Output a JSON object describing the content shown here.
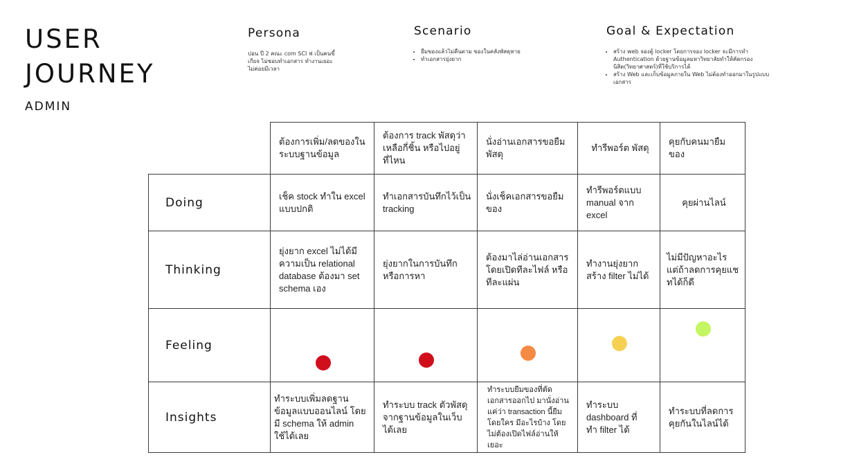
{
  "title": {
    "line1": "USER",
    "line2": "JOURNEY",
    "subtitle": "ADMIN"
  },
  "persona": {
    "heading": "Persona",
    "text": "ปอน ปี 2 คณะ com SCI ฟ เป็นคนขี้เกียจ ไม่ชอบทำเอกสาร ทำงานเยอะไม่ค่อยมีเวลา"
  },
  "scenario": {
    "heading": "Scenario",
    "items": [
      "ยืมของแล้วไม่คืนตาม ของในคลังพัสดุหาย",
      "ทำเอกสารยุ่งยาก"
    ]
  },
  "goal": {
    "heading": "Goal & Expectation",
    "items": [
      "สร้าง web จองตู้ locker โดยการจอง locker จะมีการทำ Authentication ด้วยฐานข้อมูลมหาวิทยาลัยทำให้คัดกรองนิสิต(วิทยาศาสตร์)ที่ใช้บริการได้",
      "สร้าง Web และเก็บข้อมูลภายใน Web ไม่ต้องทำออกมาในรูปแบบเอกสาร"
    ]
  },
  "table": {
    "stages": [
      "ต้องการเพิ่ม/ลดของในระบบฐานข้อมูล",
      "ต้องการ track พัสดุว่าเหลือกี่ชิ้น หรือไปอยู่ที่ไหน",
      "นั่งอ่านเอกสารขอยืมพัสดุ",
      "ทำรีพอร์ต พัสดุ",
      "คุยกับคนมายืมของ"
    ],
    "rows": {
      "doing": {
        "label": "Doing",
        "cells": [
          "เช็ค stock ทำใน excel แบบปกติ",
          "ทำเอกสารบันทึกไว้เป็น tracking",
          "นั่งเช็คเอกสารขอยืมของ",
          "ทำรีพอร์ตแบบ manual จาก excel",
          "คุยผ่านไลน์"
        ]
      },
      "thinking": {
        "label": "Thinking",
        "cells": [
          "ยุ่งยาก excel ไม่ได้มีความเป็น relational database ต้องมา set schema เอง",
          "ยุ่งยากในการบันทึกหรือการหา",
          "ต้องมาไล่อ่านเอกสารโดยเปิดทีละไฟล์ หรือทีละแผ่น",
          "ทำงานยุ่งยาก สร้าง filter ไม่ได้",
          "ไม่มีปัญหาอะไร แต่ถ้าลดการคุยแชทได้ก็ดี"
        ]
      },
      "feeling": {
        "label": "Feeling",
        "scale_note": "higher dot = better feeling (0 = worst, 1 = best)",
        "levels": [
          0.15,
          0.2,
          0.35,
          0.55,
          0.85
        ],
        "colors": [
          "#d10f1c",
          "#d10f1c",
          "#f58a45",
          "#f6d052",
          "#c4f562"
        ]
      },
      "insights": {
        "label": "Insights",
        "cells": [
          "ทำระบบเพิ่มลดฐานข้อมูลแบบออนไลน์ โดยมี schema ให้ admin ใช้ได้เลย",
          "ทำระบบ track ตัวพัสดุจากฐานข้อมูลในเว็บได้เลย",
          "ทำระบบยืมของที่ตัดเอกสารออกไป มานั่งอ่านแค่ว่า transaction นี้ยืมโดยใคร มีอะไรบ้าง โดยไม่ต้องเปิดไฟล์อ่านให้เยอะ",
          "ทำระบบ dashboard ที่ทำ filter ได้",
          "ทำระบบที่ลดการคุยกันในไลน์ได้"
        ]
      }
    }
  }
}
